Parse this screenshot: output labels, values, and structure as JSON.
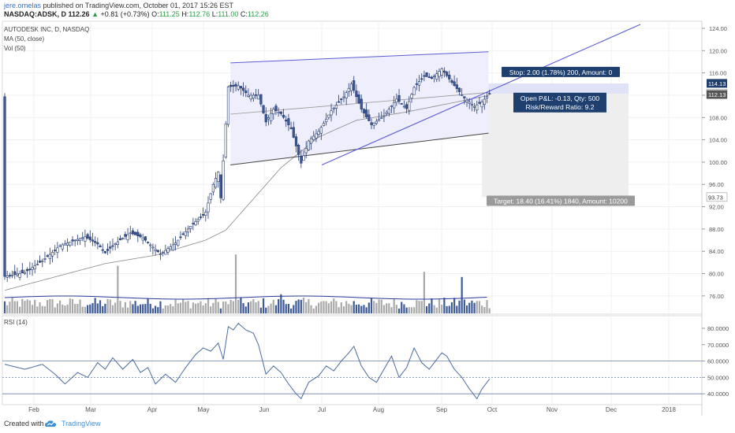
{
  "header": {
    "author": "jere.ornelas",
    "published_text": "published on TradingView.com, October 01, 2017 15:26 EST",
    "symbol": "NASDAQ:ADSK, D",
    "last": "112.26",
    "change": "+0.81 (+0.73%)",
    "o_label": "O:",
    "o": "111.25",
    "h_label": "H:",
    "h": "112.76",
    "l_label": "L:",
    "l": "111.00",
    "c_label": "C:",
    "c": "112.26"
  },
  "legend": {
    "name": "AUTODESK INC, D, NASDAQ",
    "ma": "MA (50, close)",
    "vol": "Vol (50)",
    "rsi": "RSI (14)"
  },
  "position_tool": {
    "stop": "Stop: 2.00 (1.78%) 200, Amount: 0",
    "open_pl": "Open P&L: -0.13, Qty: 500",
    "rr": "Risk/Reward Ratio: 9.2",
    "target": "Target: 18.40 (16.41%) 1840, Amount: 10200"
  },
  "price_badges": [
    "114.13",
    "112.26",
    "112.13",
    "93.73"
  ],
  "footer": {
    "created_with": "Created with",
    "brand": "TradingView"
  },
  "colors": {
    "up_body": "#ffffff",
    "down_body": "#3d5a96",
    "vol_up": "#a9a9a9",
    "vol_down": "#3d5a96",
    "channel": "#5b5bd6",
    "ma": "#888888",
    "rsi": "#4a6a9e",
    "stop_zone": "#dde0f6",
    "target_zone": "#ececec"
  },
  "chart_data": {
    "type": "candlestick",
    "symbol": "AUTODESK INC, D, NASDAQ",
    "x_ticks": [
      "Feb",
      "Mar",
      "Apr",
      "May",
      "Jun",
      "Jul",
      "Aug",
      "Sep",
      "Oct",
      "Nov",
      "Dec",
      "2018"
    ],
    "y_ticks": [
      "124.00",
      "120.00",
      "116.00",
      "112.00",
      "108.00",
      "104.00",
      "100.00",
      "96.00",
      "92.00",
      "88.00",
      "84.00",
      "80.00",
      "76.00"
    ],
    "ylim": [
      72.5,
      125.2
    ],
    "rsi_ticks": [
      "80.0000",
      "70.0000",
      "60.0000",
      "50.0000",
      "40.0000"
    ],
    "rsi_levels": [
      60,
      50,
      40
    ],
    "rsi_ylim": [
      33,
      88
    ],
    "close_anchors": [
      [
        0,
        79.5
      ],
      [
        8,
        80.2
      ],
      [
        15,
        82.3
      ],
      [
        22,
        85.0
      ],
      [
        28,
        86.0
      ],
      [
        32,
        86.6
      ],
      [
        37,
        85.3
      ],
      [
        40,
        83.7
      ],
      [
        44,
        85.4
      ],
      [
        50,
        87.3
      ],
      [
        55,
        86.4
      ],
      [
        62,
        83.5
      ],
      [
        68,
        85.5
      ],
      [
        74,
        88.5
      ],
      [
        80,
        91.0
      ],
      [
        83,
        96.0
      ],
      [
        85,
        98.2
      ],
      [
        86,
        93.6
      ],
      [
        89,
        113.5
      ],
      [
        93,
        113.7
      ],
      [
        97,
        112.0
      ],
      [
        101,
        112.0
      ],
      [
        104,
        107.2
      ],
      [
        107,
        109.5
      ],
      [
        110,
        108.7
      ],
      [
        114,
        106.0
      ],
      [
        118,
        99.8
      ],
      [
        121,
        103.8
      ],
      [
        125,
        105.5
      ],
      [
        130,
        109.2
      ],
      [
        135,
        111.7
      ],
      [
        138,
        114.0
      ],
      [
        142,
        109.5
      ],
      [
        146,
        106.7
      ],
      [
        151,
        108.3
      ],
      [
        156,
        111.3
      ],
      [
        160,
        109.6
      ],
      [
        163,
        113.4
      ],
      [
        167,
        115.5
      ],
      [
        170,
        115.0
      ],
      [
        174,
        116.7
      ],
      [
        178,
        114.3
      ],
      [
        183,
        111.5
      ],
      [
        187,
        110.0
      ],
      [
        190,
        110.8
      ],
      [
        193,
        112.26
      ]
    ],
    "ma_anchors": [
      [
        0,
        77.0
      ],
      [
        40,
        81.8
      ],
      [
        60,
        83.3
      ],
      [
        80,
        86.0
      ],
      [
        88,
        87.8
      ],
      [
        110,
        99.0
      ],
      [
        125,
        104.5
      ],
      [
        140,
        107.5
      ],
      [
        160,
        109.0
      ],
      [
        180,
        110.8
      ],
      [
        193,
        112.0
      ]
    ],
    "volume_spikes": [
      [
        45,
        0.55
      ],
      [
        92,
        0.68
      ],
      [
        110,
        0.22
      ],
      [
        167,
        0.48
      ],
      [
        182,
        0.42
      ]
    ],
    "rsi_anchors": [
      [
        0,
        58
      ],
      [
        8,
        55
      ],
      [
        15,
        58
      ],
      [
        20,
        52
      ],
      [
        24,
        46
      ],
      [
        29,
        53
      ],
      [
        33,
        50
      ],
      [
        37,
        59
      ],
      [
        40,
        55
      ],
      [
        43,
        62
      ],
      [
        47,
        55
      ],
      [
        51,
        61
      ],
      [
        54,
        53
      ],
      [
        57,
        56
      ],
      [
        60,
        46
      ],
      [
        64,
        52
      ],
      [
        68,
        47
      ],
      [
        72,
        56
      ],
      [
        76,
        64
      ],
      [
        79,
        68
      ],
      [
        82,
        66
      ],
      [
        85,
        71
      ],
      [
        87,
        61
      ],
      [
        89,
        81
      ],
      [
        91,
        79
      ],
      [
        93,
        83
      ],
      [
        96,
        79
      ],
      [
        99,
        77
      ],
      [
        101,
        70
      ],
      [
        104,
        52
      ],
      [
        107,
        57
      ],
      [
        110,
        53
      ],
      [
        113,
        46
      ],
      [
        116,
        40
      ],
      [
        118,
        37
      ],
      [
        121,
        47
      ],
      [
        125,
        51
      ],
      [
        128,
        57
      ],
      [
        131,
        54
      ],
      [
        134,
        60
      ],
      [
        137,
        65
      ],
      [
        139,
        69
      ],
      [
        142,
        57
      ],
      [
        145,
        50
      ],
      [
        148,
        47
      ],
      [
        151,
        55
      ],
      [
        154,
        63
      ],
      [
        157,
        50
      ],
      [
        160,
        56
      ],
      [
        163,
        68
      ],
      [
        166,
        59
      ],
      [
        169,
        55
      ],
      [
        172,
        61
      ],
      [
        174,
        65
      ],
      [
        176,
        63
      ],
      [
        179,
        55
      ],
      [
        182,
        50
      ],
      [
        185,
        43
      ],
      [
        188,
        37
      ],
      [
        190,
        43
      ],
      [
        193,
        49
      ]
    ]
  }
}
